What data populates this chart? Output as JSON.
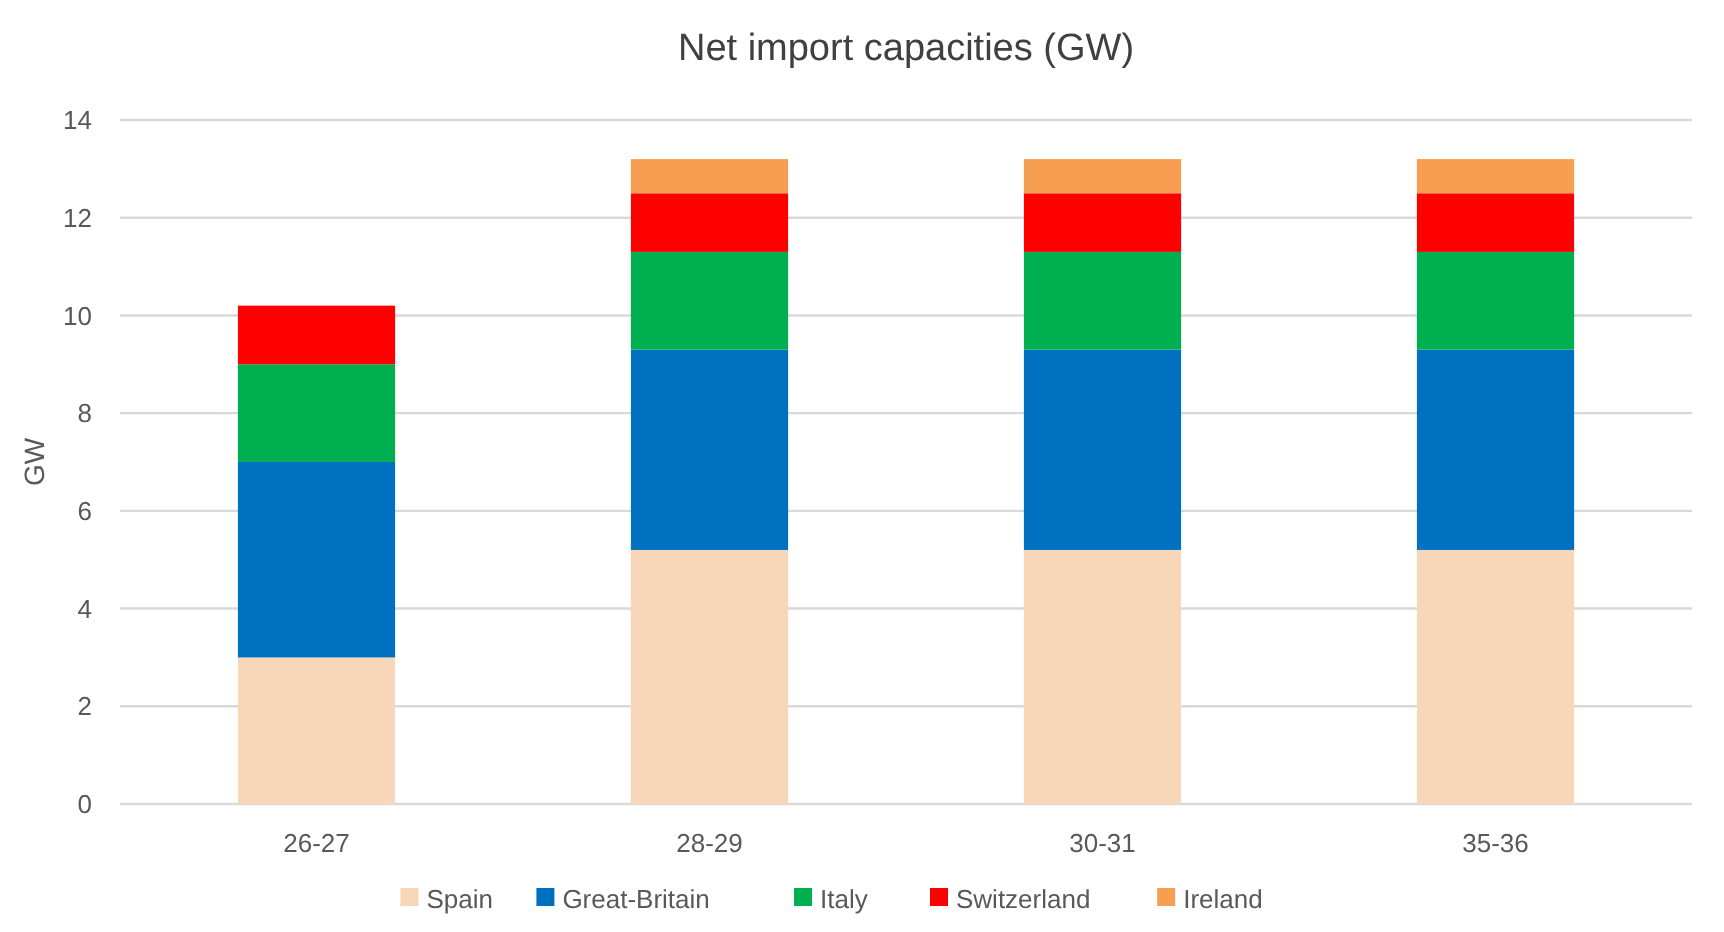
{
  "chart_data": {
    "type": "bar",
    "title": "Net import capacities (GW)",
    "ylabel": "GW",
    "categories": [
      "26-27",
      "28-29",
      "30-31",
      "35-36"
    ],
    "stacked": true,
    "grid": "y",
    "legend": "bottom",
    "ylim": [
      0,
      14
    ],
    "yticks": [
      0,
      2,
      4,
      6,
      8,
      10,
      12,
      14
    ],
    "series": [
      {
        "name": "Spain",
        "color": "#f8d6b8",
        "values": [
          3,
          5.2,
          5.2,
          5.2
        ]
      },
      {
        "name": "Great-Britain",
        "color": "#0070c0",
        "values": [
          4,
          4.1,
          4.1,
          4.1
        ]
      },
      {
        "name": "Italy",
        "color": "#00b050",
        "values": [
          2,
          2,
          2,
          2
        ]
      },
      {
        "name": "Switzerland",
        "color": "#ff0000",
        "values": [
          1.2,
          1.2,
          1.2,
          1.2
        ]
      },
      {
        "name": "Ireland",
        "color": "#f79f51",
        "values": [
          null,
          0.7,
          0.7,
          0.7
        ]
      }
    ]
  }
}
